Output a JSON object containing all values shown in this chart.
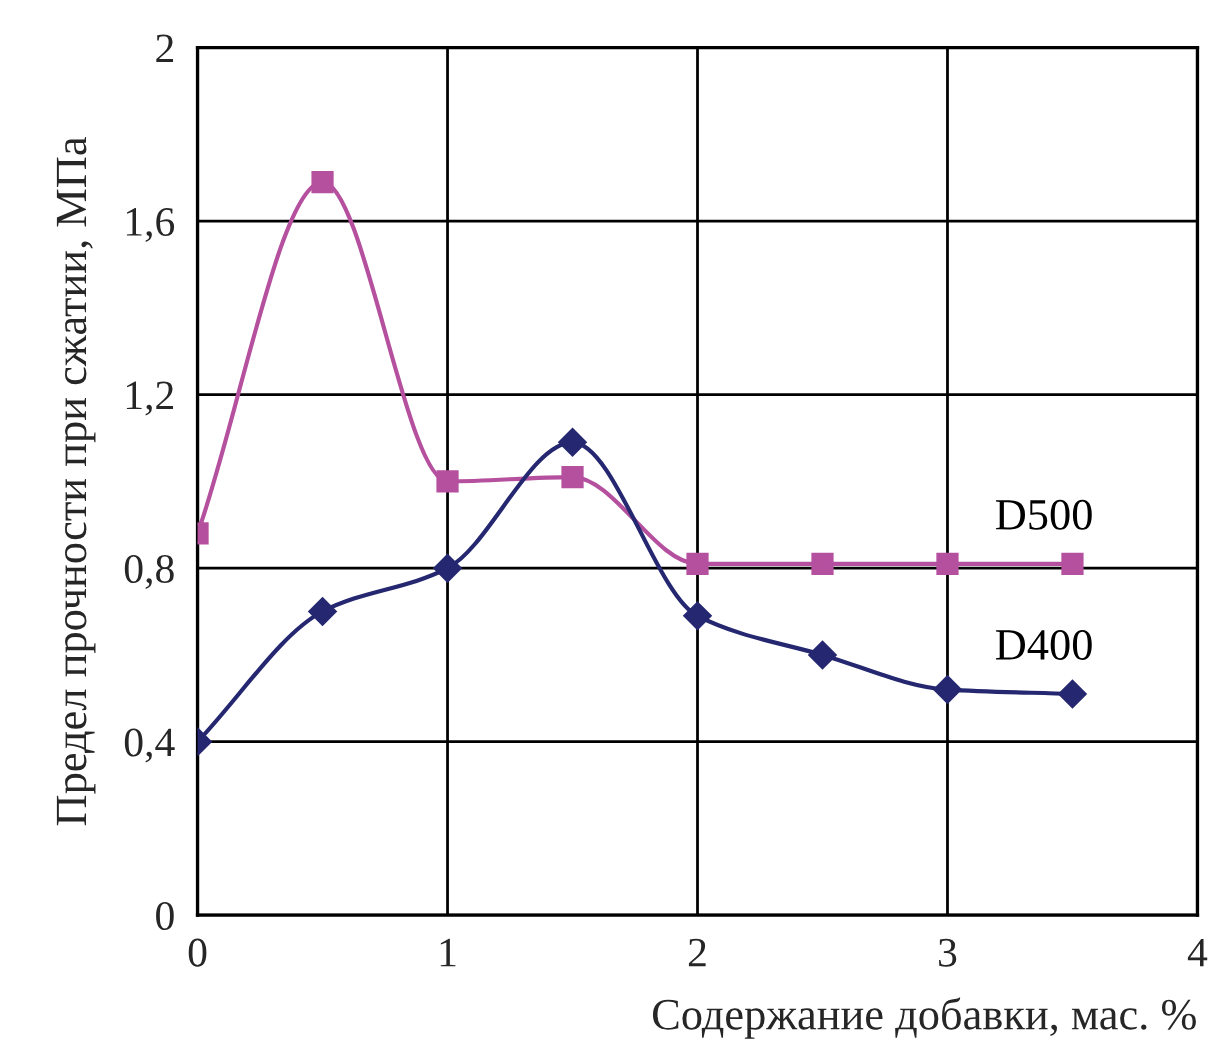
{
  "chart_data": {
    "type": "line",
    "xlabel": "Содержание добавки, мас. %",
    "ylabel": "Предел прочности при сжатии, МПа",
    "x": [
      0,
      0.5,
      1,
      1.5,
      2,
      2.5,
      3,
      3.5
    ],
    "series": [
      {
        "name": "D500",
        "color": "#b5509f",
        "marker": "square",
        "values": [
          0.88,
          1.69,
          1.0,
          1.01,
          0.81,
          0.81,
          0.81,
          0.81
        ]
      },
      {
        "name": "D400",
        "color": "#252870",
        "marker": "diamond",
        "values": [
          0.4,
          0.7,
          0.8,
          1.09,
          0.69,
          0.6,
          0.52,
          0.51
        ]
      }
    ],
    "xlim": [
      0,
      4
    ],
    "xticks": [
      0,
      1,
      2,
      3,
      4
    ],
    "ylim": [
      0,
      2
    ],
    "yticks": [
      0,
      {
        "value": 0.4,
        "label": "0,4"
      },
      {
        "value": 0.8,
        "label": "0,8"
      },
      {
        "value": 1.2,
        "label": "1,2"
      },
      {
        "value": 1.6,
        "label": "1,6"
      },
      2
    ],
    "grid": true,
    "line_style": "solid"
  }
}
